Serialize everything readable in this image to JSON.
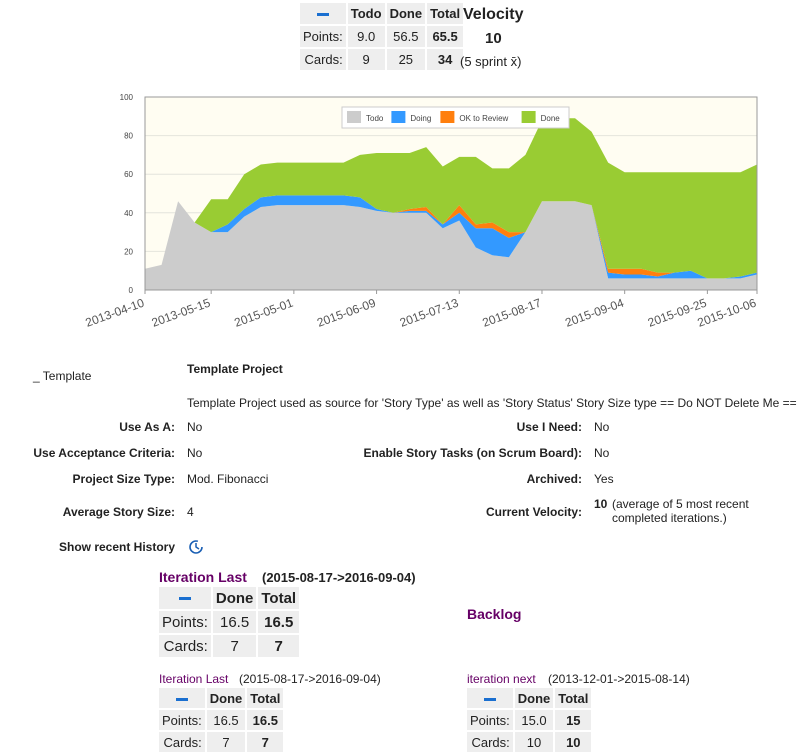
{
  "summary": {
    "columns": [
      "Todo",
      "Done",
      "Total"
    ],
    "rows": [
      {
        "label": "Points:",
        "cells": [
          "9.0",
          "56.5",
          "65.5"
        ]
      },
      {
        "label": "Cards:",
        "cells": [
          "9",
          "25",
          "34"
        ]
      }
    ]
  },
  "velocity": {
    "title": "Velocity",
    "value": "10",
    "note": "(5 sprint x̄)"
  },
  "chart_data": {
    "type": "stacked-area",
    "categories": [
      "2013-04-10",
      null,
      null,
      null,
      "2013-05-15",
      null,
      null,
      null,
      null,
      "2015-05-01",
      null,
      null,
      null,
      null,
      "2015-06-09",
      null,
      null,
      null,
      null,
      "2015-07-13",
      null,
      null,
      null,
      null,
      "2015-08-17",
      null,
      null,
      null,
      null,
      "2015-09-04",
      null,
      null,
      null,
      null,
      "2015-09-25",
      null,
      null,
      "2015-10-06"
    ],
    "series": [
      {
        "name": "Todo",
        "color": "#cccccc",
        "values": [
          11,
          13,
          46,
          35,
          30,
          30,
          38,
          43,
          44,
          44,
          44,
          44,
          44,
          43,
          41,
          40,
          40,
          40,
          32,
          36,
          22,
          18,
          17,
          30,
          46,
          46,
          46,
          44,
          6,
          6,
          6,
          6,
          6,
          6,
          6,
          6,
          6,
          8
        ]
      },
      {
        "name": "Doing",
        "color": "#3399ff",
        "values": [
          0,
          0,
          0,
          0,
          0,
          4,
          4,
          5,
          5,
          5,
          5,
          5,
          5,
          5,
          1,
          0,
          1,
          1,
          2,
          4,
          10,
          14,
          10,
          0,
          0,
          0,
          0,
          0,
          3,
          2,
          2,
          1,
          3,
          4,
          0,
          0,
          1,
          1
        ]
      },
      {
        "name": "OK to Review",
        "color": "#ff7f0e",
        "values": [
          0,
          0,
          0,
          0,
          0,
          0,
          0,
          0,
          0,
          0,
          0,
          0,
          0,
          0,
          0,
          0,
          1,
          2,
          0,
          4,
          2,
          3,
          3,
          0,
          0,
          0,
          0,
          0,
          2,
          3,
          3,
          2,
          0,
          0,
          0,
          0,
          0,
          0
        ]
      },
      {
        "name": "Done",
        "color": "#99cc33",
        "values": [
          0,
          0,
          0,
          0,
          17,
          13,
          18,
          17,
          17,
          17,
          17,
          17,
          17,
          22,
          29,
          31,
          29,
          31,
          30,
          25,
          35,
          28,
          33,
          40,
          42,
          43,
          43,
          38,
          55,
          50,
          50,
          52,
          52,
          51,
          55,
          55,
          54,
          56
        ]
      }
    ],
    "ylim": [
      0,
      100
    ],
    "yticks": [
      0,
      20,
      40,
      60,
      80,
      100
    ],
    "grid": true,
    "legend": "top"
  },
  "project": {
    "section": "_ Template",
    "name": "Template Project",
    "description": "Template Project used as source for 'Story Type' as well as 'Story Status' Story Size type == Do NOT Delete Me ==",
    "left": [
      {
        "label": "Use As A:",
        "value": "No"
      },
      {
        "label": "Use Acceptance Criteria:",
        "value": "No"
      },
      {
        "label": "Project Size Type:",
        "value": "Mod. Fibonacci"
      },
      {
        "label": "Average Story Size:",
        "value": "4"
      }
    ],
    "right": [
      {
        "label": "Use I Need:",
        "value": "No"
      },
      {
        "label": "Enable Story Tasks (on Scrum Board):",
        "value": "No"
      },
      {
        "label": "Archived:",
        "value": "Yes"
      },
      {
        "label": "Current Velocity:",
        "value": "10",
        "note": "(average of 5 most recent completed iterations.)"
      }
    ]
  },
  "history": {
    "label": "Show recent History"
  },
  "iteration_main": {
    "name": "Iteration Last",
    "range": "(2015-08-17->2016-09-04)",
    "columns": [
      "Done",
      "Total"
    ],
    "rows": [
      {
        "label": "Points:",
        "cells": [
          "16.5",
          "16.5"
        ]
      },
      {
        "label": "Cards:",
        "cells": [
          "7",
          "7"
        ]
      }
    ]
  },
  "backlog": {
    "label": "Backlog"
  },
  "iterations": [
    {
      "name": "Iteration Last",
      "range": "(2015-08-17->2016-09-04)",
      "columns": [
        "Done",
        "Total"
      ],
      "rows": [
        {
          "label": "Points:",
          "cells": [
            "16.5",
            "16.5"
          ]
        },
        {
          "label": "Cards:",
          "cells": [
            "7",
            "7"
          ]
        }
      ]
    },
    {
      "name": "iteration next",
      "range": "(2013-12-01->2015-08-14)",
      "columns": [
        "Done",
        "Total"
      ],
      "rows": [
        {
          "label": "Points:",
          "cells": [
            "15.0",
            "15"
          ]
        },
        {
          "label": "Cards:",
          "cells": [
            "10",
            "10"
          ]
        }
      ]
    }
  ]
}
